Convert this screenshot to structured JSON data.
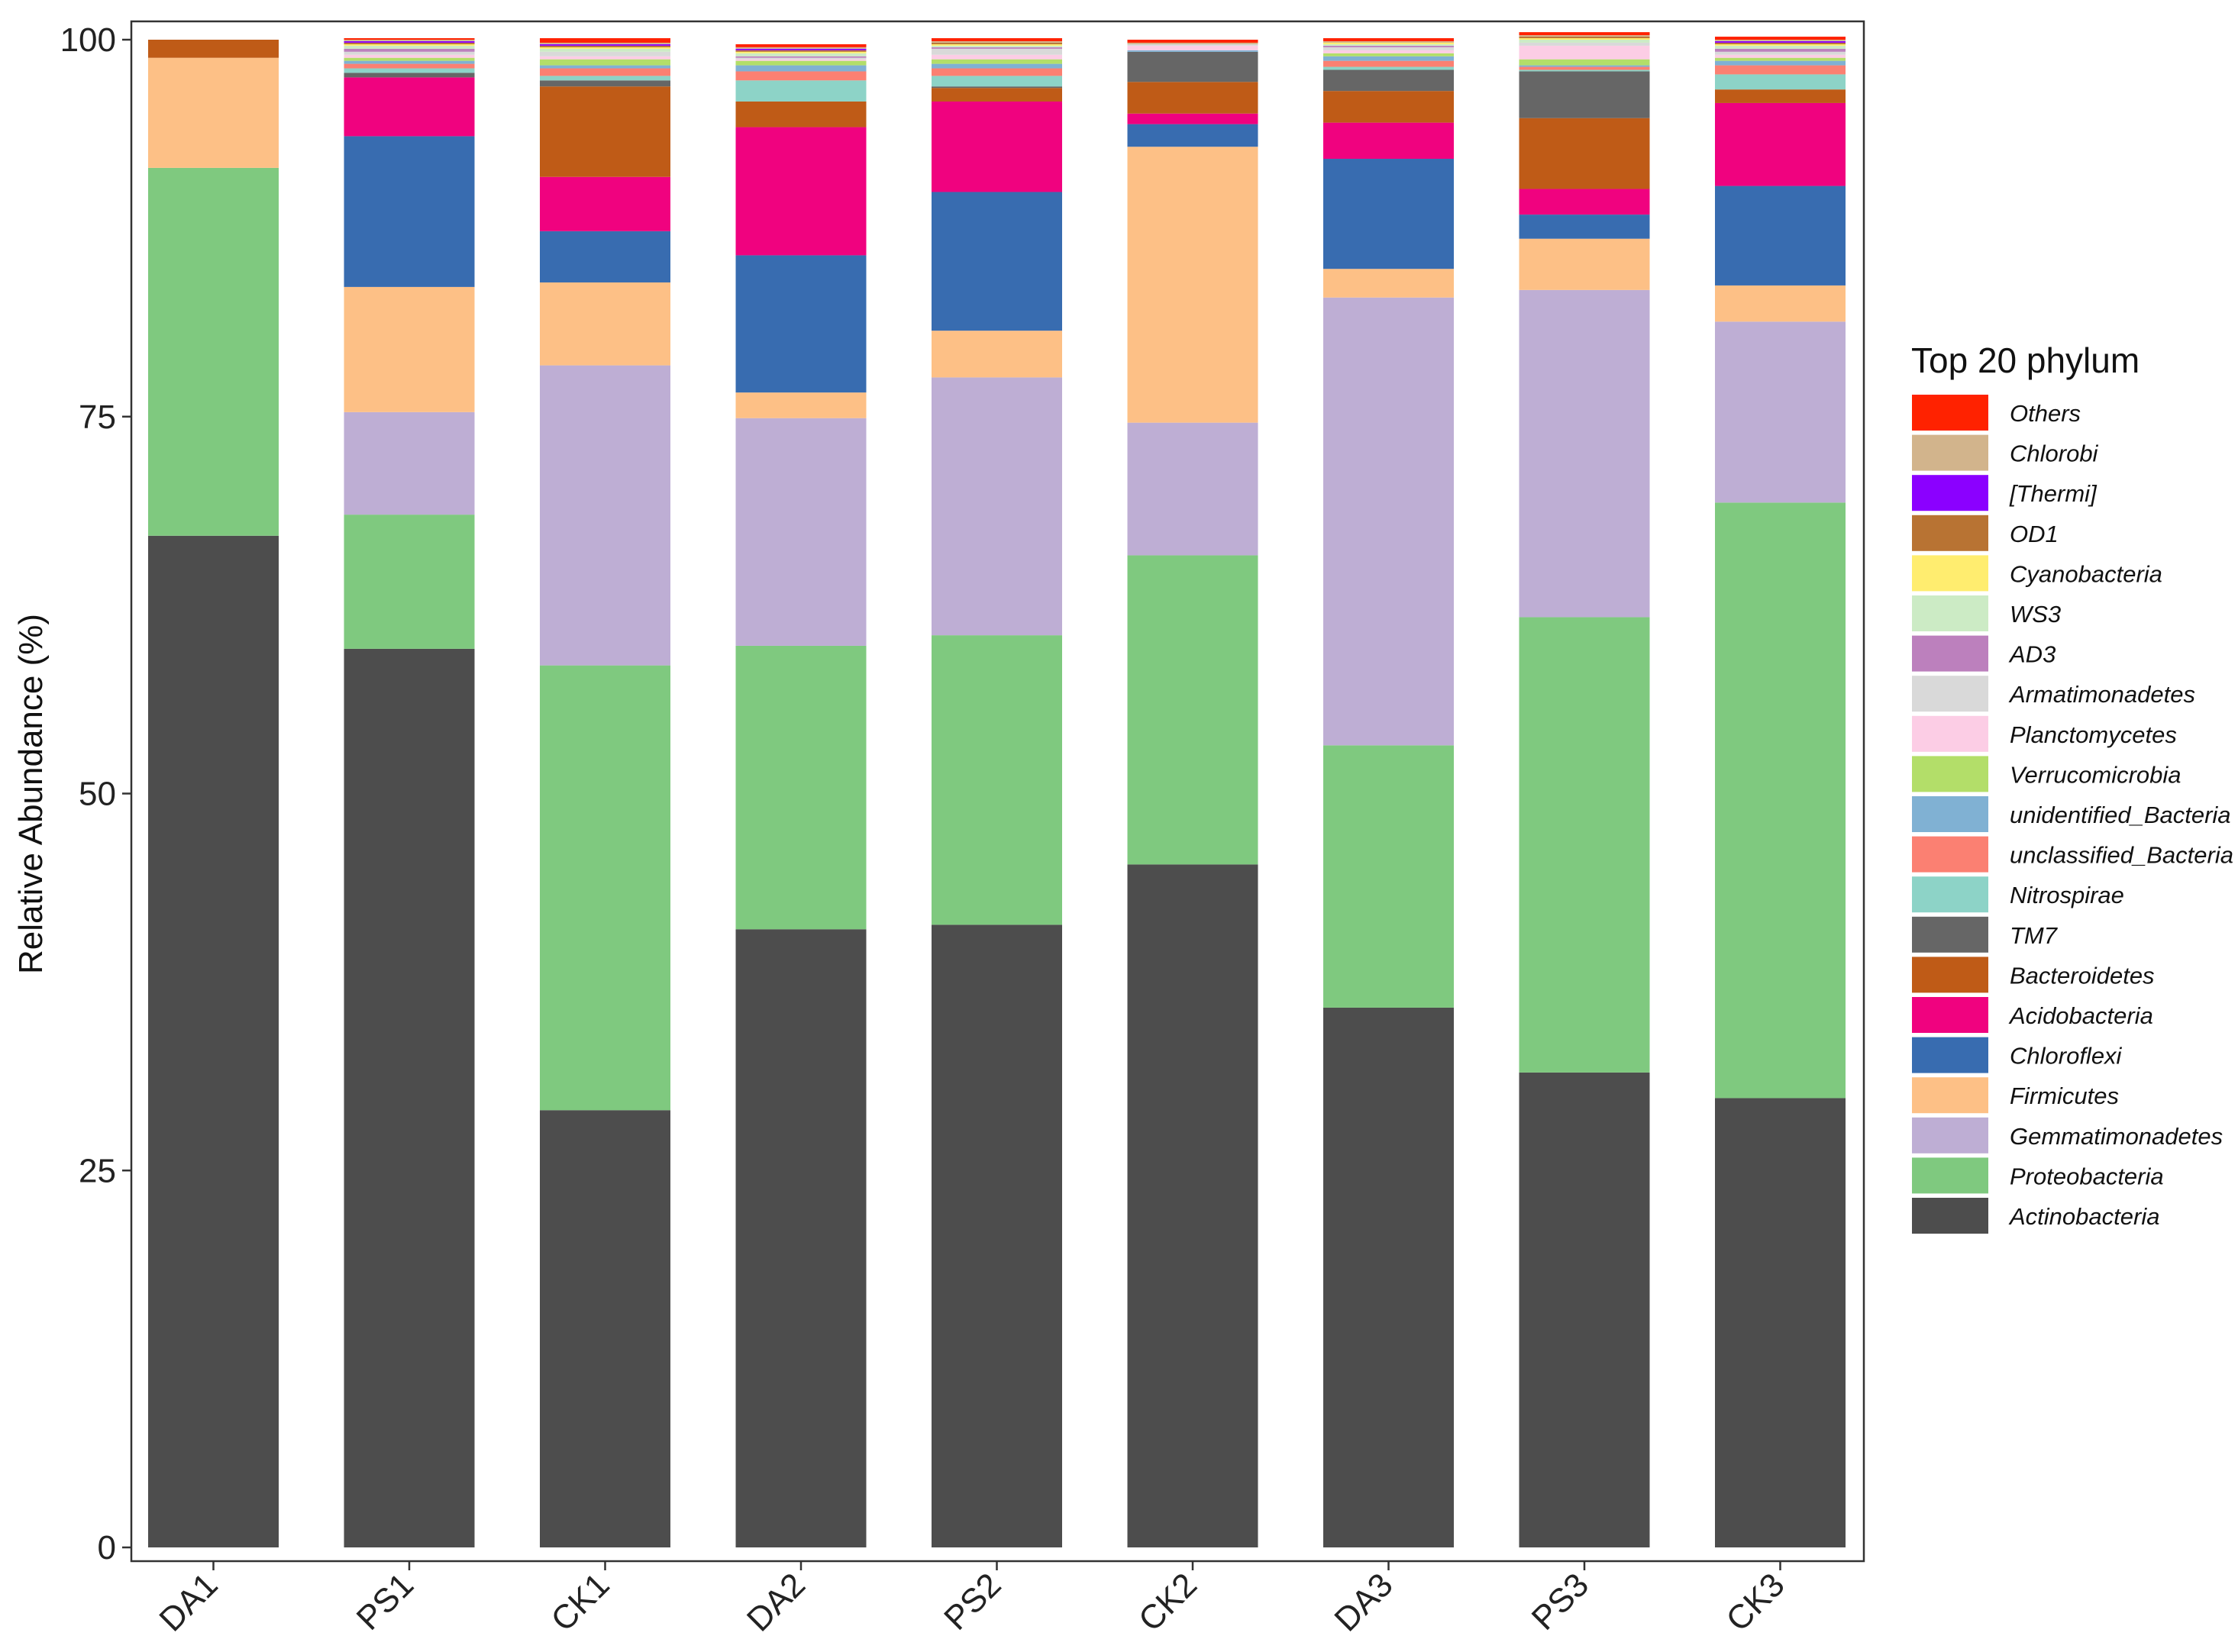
{
  "chart_data": {
    "type": "bar",
    "stacked": true,
    "ylabel": "Relative Abundance (%)",
    "xlabel": "",
    "ylim": [
      0,
      100
    ],
    "yticks": [
      0,
      25,
      50,
      75,
      100
    ],
    "grid": false,
    "legend_title": "Top 20 phylum",
    "legend_position": "right",
    "categories": [
      "DA1",
      "PS1",
      "CK1",
      "DA2",
      "PS2",
      "CK2",
      "DA3",
      "PS3",
      "CK3"
    ],
    "series": [
      {
        "name": "Actinobacteria",
        "color": "#4d4d4d",
        "values": [
          67.1,
          59.6,
          29.0,
          41.0,
          41.3,
          45.3,
          35.8,
          31.5,
          29.8
        ]
      },
      {
        "name": "Proteobacteria",
        "color": "#7fc97f",
        "values": [
          24.4,
          8.9,
          29.5,
          18.8,
          19.2,
          20.5,
          17.4,
          30.2,
          39.5
        ]
      },
      {
        "name": "Gemmatimonadetes",
        "color": "#beaed4",
        "values": [
          0.0,
          6.8,
          19.9,
          15.1,
          17.1,
          8.8,
          29.7,
          21.7,
          12.0
        ]
      },
      {
        "name": "Firmicutes",
        "color": "#fdc086",
        "values": [
          7.3,
          8.3,
          5.5,
          1.7,
          3.1,
          18.3,
          1.9,
          3.4,
          2.4
        ]
      },
      {
        "name": "Chloroflexi",
        "color": "#386cb0",
        "values": [
          0.0,
          10.0,
          3.4,
          9.1,
          9.2,
          1.5,
          7.3,
          1.6,
          6.6
        ]
      },
      {
        "name": "Acidobacteria",
        "color": "#f0027f",
        "values": [
          0.0,
          3.9,
          3.6,
          8.5,
          6.0,
          0.7,
          2.4,
          1.7,
          5.5
        ]
      },
      {
        "name": "Bacteroidetes",
        "color": "#bf5b17",
        "values": [
          1.2,
          0.0,
          6.0,
          1.7,
          0.9,
          2.1,
          2.1,
          4.7,
          0.9
        ]
      },
      {
        "name": "TM7",
        "color": "#666666",
        "values": [
          0.0,
          0.3,
          0.4,
          0.0,
          0.1,
          2.0,
          1.4,
          3.1,
          0.0
        ]
      },
      {
        "name": "Nitrospirae",
        "color": "#8dd3c7",
        "values": [
          0.0,
          0.3,
          0.3,
          1.4,
          0.7,
          0.0,
          0.2,
          0.1,
          1.0
        ]
      },
      {
        "name": "unclassified_Bacteria",
        "color": "#fb8072",
        "values": [
          0.0,
          0.3,
          0.5,
          0.6,
          0.5,
          0.0,
          0.4,
          0.2,
          0.6
        ]
      },
      {
        "name": "unidentified_Bacteria",
        "color": "#80b1d3",
        "values": [
          0.0,
          0.2,
          0.2,
          0.4,
          0.3,
          0.1,
          0.3,
          0.1,
          0.3
        ]
      },
      {
        "name": "Verrucomicrobia",
        "color": "#b3de69",
        "values": [
          0.0,
          0.2,
          0.4,
          0.3,
          0.3,
          0.0,
          0.2,
          0.4,
          0.2
        ]
      },
      {
        "name": "Planctomycetes",
        "color": "#fccde5",
        "values": [
          0.0,
          0.2,
          0.2,
          0.1,
          0.3,
          0.3,
          0.2,
          0.9,
          0.2
        ]
      },
      {
        "name": "Armatimonadetes",
        "color": "#d9d9d9",
        "values": [
          0.0,
          0.2,
          0.3,
          0.1,
          0.4,
          0.1,
          0.2,
          0.2,
          0.2
        ]
      },
      {
        "name": "AD3",
        "color": "#bc80bd",
        "values": [
          0.0,
          0.2,
          0.0,
          0.1,
          0.1,
          0.0,
          0.1,
          0.0,
          0.2
        ]
      },
      {
        "name": "WS3",
        "color": "#ccebc5",
        "values": [
          0.0,
          0.2,
          0.2,
          0.2,
          0.1,
          0.0,
          0.1,
          0.2,
          0.2
        ]
      },
      {
        "name": "Cyanobacteria",
        "color": "#ffed6f",
        "values": [
          0.0,
          0.1,
          0.1,
          0.1,
          0.1,
          0.0,
          0.1,
          0.1,
          0.1
        ]
      },
      {
        "name": "OD1",
        "color": "#b87333",
        "values": [
          0.0,
          0.1,
          0.1,
          0.1,
          0.1,
          0.0,
          0.0,
          0.1,
          0.1
        ]
      },
      {
        "name": "[Thermi]",
        "color": "#8b00ff",
        "values": [
          0.0,
          0.1,
          0.1,
          0.1,
          0.0,
          0.0,
          0.0,
          0.0,
          0.1
        ]
      },
      {
        "name": "Chlorobi",
        "color": "#d2b48c",
        "values": [
          0.0,
          0.1,
          0.1,
          0.1,
          0.1,
          0.1,
          0.1,
          0.1,
          0.1
        ]
      },
      {
        "name": "Others",
        "color": "#ff2200",
        "values": [
          0.0,
          0.1,
          0.3,
          0.2,
          0.2,
          0.2,
          0.2,
          0.2,
          0.2
        ]
      }
    ]
  }
}
